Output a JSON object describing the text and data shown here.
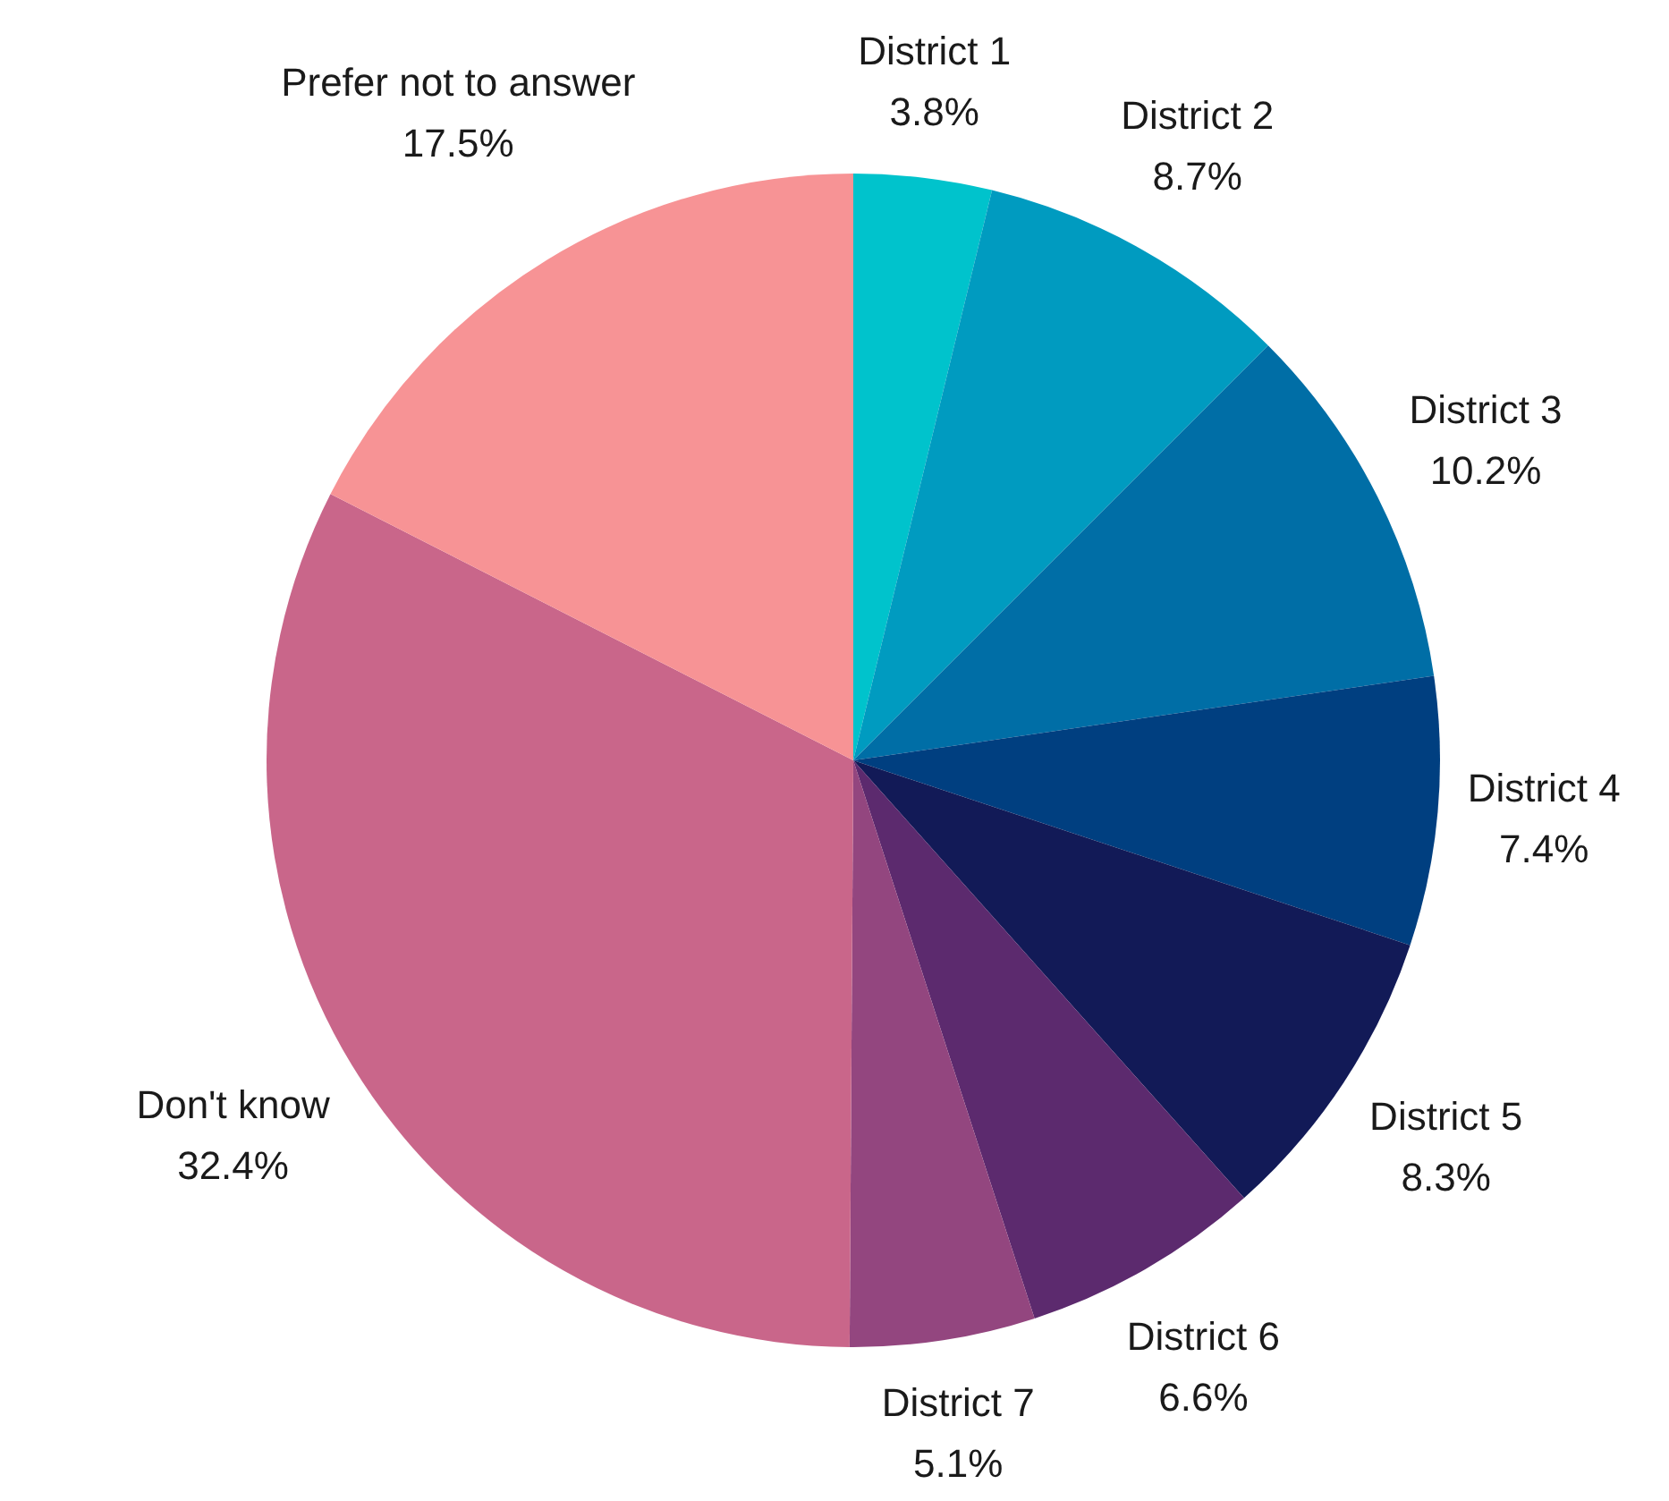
{
  "chart_data": {
    "type": "pie",
    "categories": [
      "District 1",
      "District 2",
      "District 3",
      "District 4",
      "District 5",
      "District 6",
      "District 7",
      "Don't know",
      "Prefer not to answer"
    ],
    "values": [
      3.8,
      8.7,
      10.2,
      7.4,
      8.3,
      6.6,
      5.1,
      32.4,
      17.5
    ],
    "value_labels": [
      "3.8%",
      "8.7%",
      "10.2%",
      "7.4%",
      "8.3%",
      "6.6%",
      "5.1%",
      "32.4%",
      "17.5%"
    ],
    "colors": [
      "#00c3cc",
      "#009bc0",
      "#006ea6",
      "#003f80",
      "#121a57",
      "#5c2a6e",
      "#93467f",
      "#c9668a",
      "#f79395"
    ],
    "legend": false
  }
}
